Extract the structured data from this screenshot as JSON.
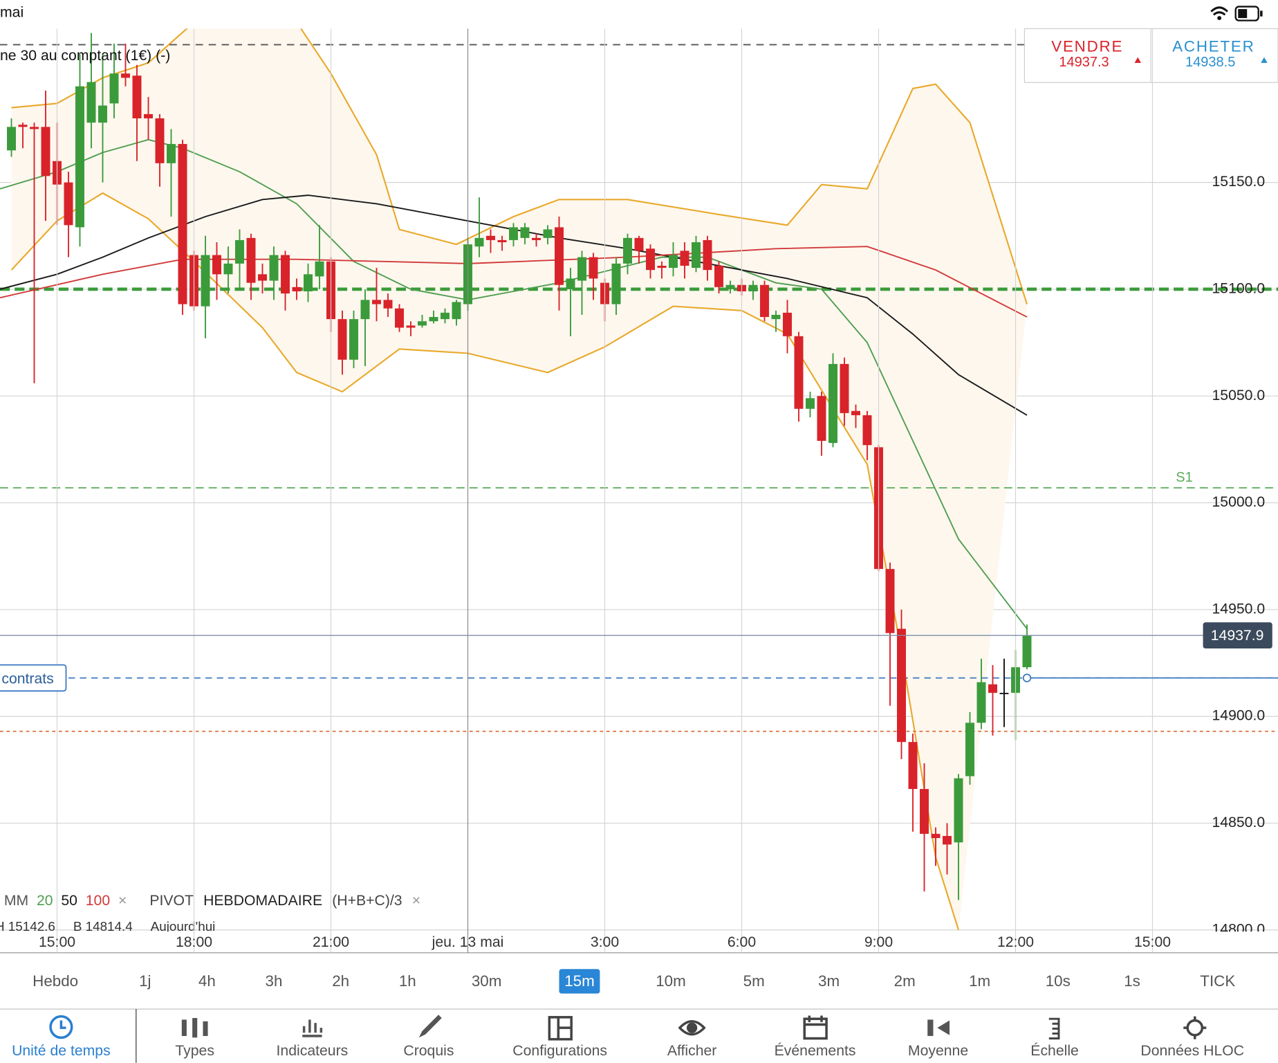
{
  "status_bar": {
    "left": "mai"
  },
  "chart_data": {
    "type": "candlestick",
    "title": "ne 30 au comptant (1€) (-)",
    "categories": [
      null,
      null,
      null,
      null,
      null,
      null,
      null,
      null,
      null,
      null,
      null,
      null,
      null,
      null,
      null,
      null,
      null,
      null,
      null,
      null,
      null,
      null,
      null,
      null,
      null,
      null,
      null,
      null,
      null,
      null,
      null,
      null,
      null,
      null,
      null,
      null,
      null,
      null,
      null,
      null,
      null,
      null,
      null,
      null,
      null,
      null,
      null,
      null,
      null,
      null,
      null,
      null,
      null,
      null,
      null,
      null,
      null,
      null,
      null,
      null,
      null,
      null,
      null,
      null,
      null,
      null,
      null,
      null,
      null,
      null,
      null,
      null,
      null,
      null,
      null,
      null,
      null,
      null,
      null,
      null,
      null,
      null,
      null,
      null,
      null,
      null,
      null,
      null,
      null,
      null
    ],
    "open": [
      15165,
      15177,
      15176,
      15176,
      15160,
      15150,
      15129,
      15178,
      15178,
      15187,
      15201,
      15200,
      15182,
      15180,
      15159,
      15168,
      15116,
      15092,
      15116,
      15107,
      15112,
      15124,
      15107,
      15104,
      15116,
      15101,
      15099,
      15106,
      15113,
      15086,
      15067,
      15086,
      15095,
      15095,
      15091,
      15083,
      15083,
      15085,
      15086,
      15086,
      15093,
      15120,
      15125,
      15123,
      15123,
      15124,
      15124,
      15124,
      15129,
      15100,
      15104,
      15115,
      15103,
      15093,
      15112,
      15124,
      15119,
      15111,
      15110,
      15118,
      15110,
      15123,
      15111,
      15100,
      15102,
      15099,
      15102,
      15086,
      15089,
      15078,
      15044,
      15050,
      15028,
      15065,
      15043,
      15041,
      15026,
      14969,
      14941,
      14888,
      14866,
      14845,
      14844,
      14841,
      14872,
      14897,
      14915,
      14911,
      14911,
      14923
    ],
    "high": [
      15180,
      15178,
      15178,
      15193,
      15178,
      15155,
      15210,
      15220,
      15210,
      15215,
      15215,
      15205,
      15190,
      15182,
      15175,
      15170,
      15118,
      15125,
      15122,
      15120,
      15128,
      15126,
      15112,
      15120,
      15118,
      15105,
      15112,
      15130,
      15115,
      15090,
      15090,
      15100,
      15110,
      15098,
      15093,
      15085,
      15088,
      15090,
      15091,
      15095,
      15124,
      15143,
      15128,
      15125,
      15131,
      15131,
      15126,
      15130,
      15134,
      15110,
      15118,
      15117,
      15105,
      15115,
      15126,
      15125,
      15121,
      15113,
      15122,
      15122,
      15125,
      15125,
      15113,
      15104,
      15105,
      15104,
      15104,
      15090,
      15095,
      15080,
      15052,
      15052,
      15070,
      15068,
      15046,
      15043,
      15027,
      14972,
      14950,
      14892,
      14878,
      14848,
      14850,
      14873,
      14902,
      14927,
      14924,
      14927,
      14931,
      14943
    ],
    "low": [
      15162,
      15166,
      15056,
      15132,
      15130,
      15115,
      15120,
      15166,
      15150,
      15180,
      15195,
      15160,
      15170,
      15148,
      15134,
      15088,
      15090,
      15077,
      15095,
      15098,
      15100,
      15095,
      15098,
      15095,
      15090,
      15095,
      15094,
      15100,
      15080,
      15060,
      15063,
      15064,
      15085,
      15087,
      15080,
      15078,
      15082,
      15084,
      15084,
      15083,
      15090,
      15115,
      15117,
      15118,
      15120,
      15121,
      15120,
      15121,
      15090,
      15078,
      15088,
      15095,
      15085,
      15088,
      15107,
      15112,
      15105,
      15105,
      15106,
      15105,
      15108,
      15104,
      15098,
      15098,
      15097,
      15095,
      15085,
      15080,
      15070,
      15038,
      15040,
      15022,
      15026,
      15036,
      15035,
      15020,
      14968,
      14905,
      14880,
      14846,
      14818,
      14830,
      14826,
      14814,
      14868,
      14894,
      14891,
      14895,
      14889,
      14922
    ],
    "close": [
      15176,
      15176,
      15175,
      15153,
      15149,
      15130,
      15195,
      15197,
      15186,
      15201,
      15199,
      15180,
      15180,
      15159,
      15168,
      15093,
      15092,
      15116,
      15107,
      15112,
      15123,
      15103,
      15104,
      15116,
      15098,
      15099,
      15107,
      15113,
      15086,
      15067,
      15086,
      15095,
      15093,
      15091,
      15082,
      15082,
      15085,
      15087,
      15089,
      15094,
      15121,
      15124,
      15123,
      15122,
      15129,
      15129,
      15123,
      15128,
      15102,
      15105,
      15115,
      15105,
      15093,
      15112,
      15124,
      15118,
      15109,
      15110,
      15116,
      15111,
      15122,
      15109,
      15101,
      15102,
      15099,
      15102,
      15087,
      15088,
      15078,
      15044,
      15049,
      15029,
      15065,
      15042,
      15041,
      15027,
      14969,
      14939,
      14888,
      14866,
      14845,
      14843,
      14840,
      14871,
      14897,
      14916,
      14911,
      14911,
      14923,
      14937.9
    ],
    "up_color": "#3b9b3b",
    "down_color": "#d9232a",
    "doji_color": "#111111",
    "xlim": [
      -1,
      104
    ],
    "xticks": [
      {
        "value": 4,
        "label": "15:00"
      },
      {
        "value": 16,
        "label": "18:00"
      },
      {
        "value": 28,
        "label": "21:00"
      },
      {
        "value": 40,
        "label": "jeu. 13 mai"
      },
      {
        "value": 52,
        "label": "3:00"
      },
      {
        "value": 64,
        "label": "6:00"
      },
      {
        "value": 76,
        "label": "9:00"
      },
      {
        "value": 88,
        "label": "12:00"
      },
      {
        "value": 100,
        "label": "15:00"
      }
    ],
    "ylim": [
      14800,
      15222
    ],
    "yticks": [
      {
        "value": 14800,
        "label": "14800.0"
      },
      {
        "value": 14850,
        "label": "14850.0"
      },
      {
        "value": 14900,
        "label": "14900.0"
      },
      {
        "value": 14950,
        "label": "14950.0"
      },
      {
        "value": 15000,
        "label": "15000.0"
      },
      {
        "value": 15050,
        "label": "15050.0"
      },
      {
        "value": 15100,
        "label": "15100.0"
      },
      {
        "value": 15150,
        "label": "15150.0"
      }
    ],
    "grid": true,
    "series": [
      {
        "name": "20",
        "color": "#4f9e4f",
        "x": [
          -1,
          4,
          8,
          12,
          15,
          20,
          25,
          30,
          35,
          40,
          48,
          57,
          61,
          67,
          71,
          75,
          79,
          83,
          89
        ],
        "values": [
          15147,
          15155,
          15164,
          15170,
          15166,
          15155,
          15140,
          15113,
          15100,
          15095,
          15103,
          15115,
          15115,
          15103,
          15100,
          15075,
          15029,
          14983,
          14941
        ]
      },
      {
        "name": "50",
        "color": "#1a1a1a",
        "x": [
          -1,
          4,
          8,
          12,
          17,
          22,
          26,
          32,
          40,
          48,
          54,
          62,
          68,
          75,
          79,
          83,
          89
        ],
        "values": [
          15100,
          15107,
          15115,
          15124,
          15134,
          15142,
          15144,
          15140,
          15132,
          15124,
          15119,
          15111,
          15105,
          15096,
          15079,
          15060,
          15041
        ]
      },
      {
        "name": "100",
        "color": "#d23a3a",
        "x": [
          -1,
          8,
          15,
          25,
          40,
          54,
          67,
          75,
          81,
          89
        ],
        "values": [
          15096,
          15107,
          15114,
          15114,
          15112,
          15115,
          15119,
          15120,
          15109,
          15087
        ]
      }
    ],
    "bands": {
      "color": "#e9a92b",
      "fill": "#fdf7ee",
      "upper": {
        "x": [
          0,
          4,
          8,
          12,
          16,
          25,
          28,
          32,
          34,
          39,
          44,
          48,
          54,
          62,
          68,
          71,
          75,
          79,
          81,
          84,
          89
        ],
        "values": [
          15185,
          15187,
          15199,
          15206,
          15225,
          15225,
          15201,
          15163,
          15128,
          15121,
          15134,
          15142,
          15142,
          15135,
          15130,
          15149,
          15147,
          15194,
          15196,
          15178,
          15093
        ]
      },
      "lower": {
        "x": [
          0,
          4,
          8,
          12,
          16,
          22,
          25,
          29,
          34,
          40,
          47,
          52,
          58,
          64,
          68,
          72,
          75,
          78,
          81,
          83
        ],
        "values": [
          15109,
          15132,
          15145,
          15133,
          15113,
          15082,
          15061,
          15052,
          15072,
          15070,
          15061,
          15073,
          15092,
          15090,
          15079,
          15044,
          15018,
          14930,
          14834,
          14800
        ]
      }
    },
    "levels": [
      {
        "value": 15214.5,
        "color": "#555555",
        "width": 1.5,
        "dash": "9 7"
      },
      {
        "value": 15100,
        "color": "#3b9b3b",
        "width": 4,
        "dash": "12 6"
      },
      {
        "value": 15007,
        "label": "S1",
        "color": "#5aab5a",
        "width": 1.5,
        "dash": "10 6"
      },
      {
        "value": 14918,
        "color": "#3a78c0",
        "width": 1.5,
        "dash": "8 6"
      },
      {
        "value": 14893,
        "color": "#d9703a",
        "width": 1.5,
        "dash": "4 4"
      }
    ],
    "last_price": 14937.9,
    "order": {
      "value": 14918,
      "label": "contrats",
      "color": "#3a78c0"
    },
    "legend": {
      "prefix": "MM",
      "close": "×"
    }
  },
  "quote": {
    "sell": {
      "label": "VENDRE",
      "price": 14937.3
    },
    "buy": {
      "label": "ACHETER",
      "price": 14938.5
    }
  },
  "pivot_legend": {
    "items": [
      "PIVOT",
      "HEBDOMADAIRE",
      "(H+B+C)/3"
    ],
    "close": "×",
    "info": [
      "H 15142.6",
      "B 14814.4",
      "Aujourd'hui"
    ]
  },
  "timeframes": {
    "items": [
      "Hebdo",
      "1j",
      "4h",
      "3h",
      "2h",
      "1h",
      "30m",
      "15m",
      "10m",
      "5m",
      "3m",
      "2m",
      "1m",
      "10s",
      "1s",
      "TICK"
    ],
    "selected": 7
  },
  "tabs": {
    "items": [
      "Unité de temps",
      "Types",
      "Indicateurs",
      "Croquis",
      "Configurations",
      "Afficher",
      "Événements",
      "Moyenne",
      "Échelle",
      "Données HLOC"
    ],
    "selected": 0
  }
}
